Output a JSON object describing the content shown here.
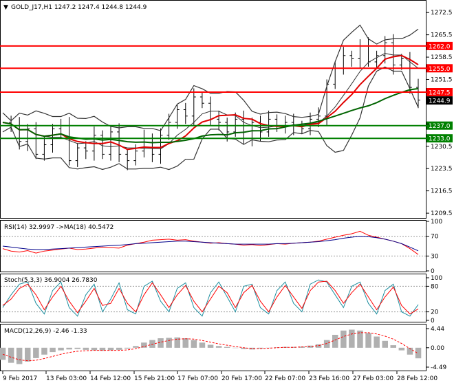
{
  "header": {
    "menu_glyph": "▼",
    "title": "GOLD_J17,H1  1247.2 1247.4 1244.8 1244.9"
  },
  "colors": {
    "level_line": "#ff0000",
    "support_line": "#008000",
    "ma_fast": "#e00000",
    "ma_slow": "#006400",
    "bollinger": "#333333",
    "price_bars": "#000000",
    "rsi": "#ff0000",
    "rsi_ma": "#00008b",
    "stoch_main": "#1f8fa0",
    "stoch_signal": "#ff0000",
    "macd_hist": "#b0b0b0",
    "macd_signal": "#ff0000",
    "current_price_bg": "#000000"
  },
  "icons": {
    "menu": "dropdown-triangle-icon"
  },
  "chart_data": [
    {
      "type": "candlestick",
      "name": "price",
      "title": "GOLD_J17,H1",
      "last_ohlc": {
        "open": 1247.2,
        "high": 1247.4,
        "low": 1244.8,
        "close": 1244.9
      },
      "ylim": [
        1208.0,
        1276.0
      ],
      "y_ticks": [
        "1272.5",
        "1265.5",
        "1258.5",
        "1251.5",
        "1244.5",
        "1237.5",
        "1230.5",
        "1223.5",
        "1216.5",
        "1209.5"
      ],
      "y_tick_values": [
        1272.5,
        1265.5,
        1258.5,
        1251.5,
        1244.5,
        1237.5,
        1230.5,
        1223.5,
        1216.5,
        1209.5
      ],
      "horizontal_levels": [
        {
          "label": "1262.0",
          "value": 1262.0,
          "kind": "resistance"
        },
        {
          "label": "1255.0",
          "value": 1255.0,
          "kind": "resistance"
        },
        {
          "label": "1247.5",
          "value": 1247.5,
          "kind": "resistance"
        },
        {
          "label": "1237.0",
          "value": 1237.0,
          "kind": "support"
        },
        {
          "label": "1233.0",
          "value": 1233.0,
          "kind": "support"
        }
      ],
      "current_price": {
        "label": "1244.9",
        "value": 1244.9
      },
      "close_path": [
        1238,
        1237,
        1232,
        1236,
        1228,
        1231,
        1236,
        1237,
        1226,
        1230,
        1229,
        1234,
        1228,
        1235,
        1228,
        1226,
        1229,
        1233,
        1228,
        1234,
        1238,
        1242,
        1240,
        1246,
        1244,
        1239,
        1238,
        1235,
        1239,
        1233,
        1238,
        1235,
        1239,
        1237,
        1238,
        1237,
        1236,
        1239,
        1240,
        1250,
        1255,
        1259,
        1258,
        1262,
        1257,
        1259,
        1263,
        1256,
        1258,
        1249,
        1245
      ],
      "x_tick_labels": [
        "9 Feb 2017",
        "13 Feb 03:00",
        "14 Feb 12:00",
        "15 Feb 21:00",
        "17 Feb 07:00",
        "20 Feb 17:00",
        "22 Feb 07:00",
        "23 Feb 16:00",
        "27 Feb 03:00",
        "28 Feb 12:00"
      ]
    },
    {
      "type": "line",
      "name": "rsi",
      "title": "RSI(14) 32.9997  ->MA(18) 40.5472",
      "ylim": [
        0,
        100
      ],
      "y_ticks": [
        "100",
        "70",
        "30",
        "0"
      ],
      "y_tick_values": [
        100,
        70,
        30,
        0
      ],
      "levels": [
        70,
        30
      ],
      "series": [
        {
          "name": "RSI(14)",
          "last": 32.9997,
          "values": [
            45,
            40,
            38,
            41,
            36,
            40,
            42,
            44,
            46,
            43,
            44,
            46,
            48,
            47,
            46,
            52,
            55,
            58,
            62,
            63,
            64,
            62,
            63,
            60,
            58,
            56,
            57,
            55,
            54,
            52,
            53,
            51,
            53,
            55,
            54,
            56,
            57,
            58,
            60,
            64,
            68,
            72,
            75,
            80,
            72,
            68,
            64,
            60,
            55,
            45,
            33
          ]
        },
        {
          "name": "MA(18)",
          "last": 40.5472,
          "values": [
            50,
            48,
            46,
            44,
            43,
            43,
            44,
            45,
            46,
            47,
            48,
            49,
            50,
            51,
            52,
            53,
            55,
            56,
            57,
            58,
            59,
            60,
            60,
            59,
            58,
            57,
            56,
            55,
            54,
            54,
            54,
            54,
            54,
            55,
            55,
            56,
            57,
            58,
            59,
            61,
            63,
            66,
            68,
            70,
            69,
            67,
            64,
            60,
            55,
            48,
            40.5
          ]
        }
      ]
    },
    {
      "type": "line",
      "name": "stochastic",
      "title": "Stoch(5,3,3) 36.9004 26.7830",
      "ylim": [
        0,
        100
      ],
      "y_ticks": [
        "100",
        "80",
        "20",
        "0"
      ],
      "y_tick_values": [
        100,
        80,
        20,
        0
      ],
      "levels": [
        80,
        20
      ],
      "series": [
        {
          "name": "%K",
          "last": 36.9004,
          "values": [
            30,
            60,
            85,
            90,
            40,
            15,
            70,
            90,
            30,
            10,
            60,
            85,
            20,
            50,
            88,
            25,
            15,
            80,
            92,
            45,
            20,
            75,
            88,
            30,
            10,
            65,
            90,
            55,
            20,
            80,
            85,
            30,
            15,
            70,
            90,
            40,
            20,
            85,
            95,
            90,
            60,
            30,
            80,
            90,
            40,
            15,
            70,
            85,
            20,
            10,
            37
          ]
        },
        {
          "name": "%D",
          "last": 26.783,
          "values": [
            35,
            50,
            75,
            85,
            60,
            25,
            55,
            80,
            45,
            18,
            45,
            75,
            35,
            40,
            75,
            40,
            20,
            60,
            88,
            60,
            30,
            60,
            82,
            45,
            20,
            50,
            80,
            65,
            30,
            65,
            82,
            45,
            20,
            55,
            82,
            55,
            28,
            70,
            90,
            92,
            70,
            40,
            65,
            85,
            55,
            25,
            55,
            78,
            35,
            15,
            27
          ]
        }
      ]
    },
    {
      "type": "bar",
      "name": "macd",
      "title": "MACD(12,26,9) -2.46 -1.33",
      "ylim": [
        -4.49,
        4.44
      ],
      "y_ticks": [
        "4.44",
        "0.00",
        "-4.49"
      ],
      "y_tick_values": [
        4.44,
        0.0,
        -4.49
      ],
      "series": [
        {
          "name": "MACD",
          "last": -2.46,
          "values": [
            -2.8,
            -3.5,
            -3.8,
            -3.2,
            -2.4,
            -1.6,
            -1.0,
            -0.6,
            -0.4,
            -0.3,
            -0.5,
            -0.6,
            -0.7,
            -0.6,
            -0.5,
            -0.2,
            0.4,
            1.2,
            1.8,
            2.2,
            2.3,
            2.4,
            2.2,
            1.8,
            1.2,
            0.7,
            0.4,
            0.2,
            0.0,
            -0.3,
            -0.4,
            -0.2,
            0.0,
            0.1,
            0.2,
            0.2,
            0.3,
            0.5,
            0.8,
            1.8,
            3.0,
            4.0,
            4.2,
            4.0,
            3.4,
            2.6,
            1.6,
            0.6,
            -0.6,
            -1.6,
            -2.46
          ]
        },
        {
          "name": "Signal",
          "last": -1.33,
          "values": [
            -1.5,
            -2.2,
            -2.8,
            -3.0,
            -2.9,
            -2.5,
            -2.0,
            -1.5,
            -1.1,
            -0.8,
            -0.7,
            -0.6,
            -0.6,
            -0.6,
            -0.6,
            -0.5,
            -0.2,
            0.3,
            0.8,
            1.3,
            1.7,
            2.0,
            2.1,
            2.0,
            1.7,
            1.3,
            0.9,
            0.6,
            0.3,
            0.0,
            -0.2,
            -0.2,
            -0.1,
            0.0,
            0.1,
            0.1,
            0.2,
            0.3,
            0.5,
            1.0,
            1.8,
            2.6,
            3.2,
            3.5,
            3.5,
            3.2,
            2.7,
            2.0,
            1.0,
            -0.2,
            -1.33
          ]
        }
      ]
    }
  ]
}
